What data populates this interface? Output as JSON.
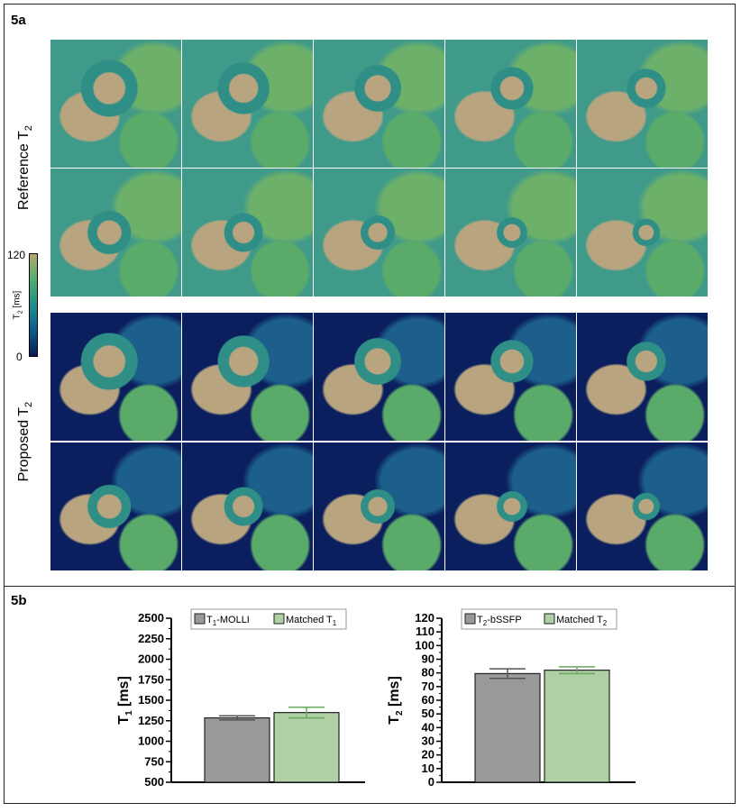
{
  "panel_a": {
    "label": "5a",
    "row_label_reference": "Reference T",
    "row_label_proposed": "Proposed T",
    "subscript": "2",
    "colorbar": {
      "max": "120",
      "min": "0",
      "label": "T",
      "label_sub": "2",
      "unit": " [ms]",
      "colormap": [
        "#0b1a52",
        "#0b5c8f",
        "#1f8f8a",
        "#4fae6e",
        "#b8a86e"
      ]
    },
    "tile_rows": 4,
    "tile_cols": 5
  },
  "panel_b": {
    "label": "5b"
  },
  "chart_data": [
    {
      "type": "bar",
      "ylabel": "T1 [ms]",
      "ylabel_main": "T",
      "ylabel_sub": "1",
      "ylabel_unit": " [ms]",
      "ylim": [
        500,
        2500
      ],
      "yticks": [
        "500",
        "750",
        "1000",
        "1250",
        "1500",
        "1750",
        "2000",
        "2250",
        "2500"
      ],
      "legend_position": "top",
      "series": [
        {
          "name": "T1-MOLLI",
          "name_main": "T",
          "name_sub": "1",
          "name_rest": "-MOLLI",
          "value": 1285,
          "error": 25,
          "color": "#999999",
          "error_color": "#555555"
        },
        {
          "name": "Matched T1",
          "name_main": "Matched T",
          "name_sub": "1",
          "name_rest": "",
          "value": 1350,
          "error": 65,
          "color": "#aed0a4",
          "error_color": "#6aa85e"
        }
      ]
    },
    {
      "type": "bar",
      "ylabel": "T2 [ms]",
      "ylabel_main": "T",
      "ylabel_sub": "2",
      "ylabel_unit": " [ms]",
      "ylim": [
        0,
        120
      ],
      "yticks": [
        "0",
        "10",
        "20",
        "30",
        "40",
        "50",
        "60",
        "70",
        "80",
        "90",
        "100",
        "110",
        "120"
      ],
      "legend_position": "top",
      "series": [
        {
          "name": "T2-bSSFP",
          "name_main": "T",
          "name_sub": "2",
          "name_rest": "-bSSFP",
          "value": 79.5,
          "error": 3.5,
          "color": "#999999",
          "error_color": "#555555"
        },
        {
          "name": "Matched T2",
          "name_main": "Matched T",
          "name_sub": "2",
          "name_rest": "",
          "value": 82,
          "error": 2.5,
          "color": "#aed0a4",
          "error_color": "#6aa85e"
        }
      ]
    }
  ]
}
